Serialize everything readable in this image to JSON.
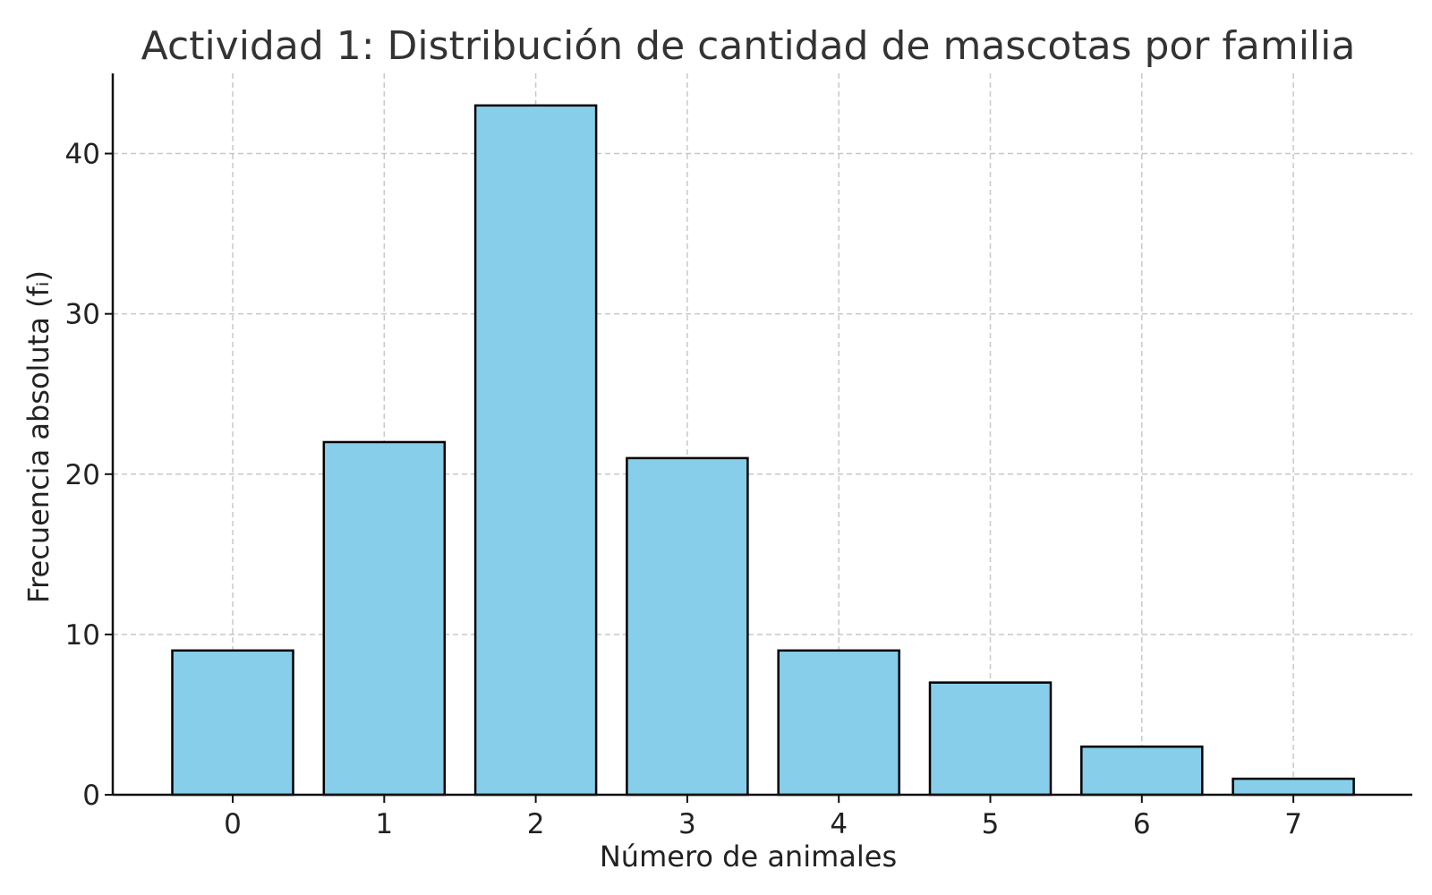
{
  "chart_data": {
    "type": "bar",
    "title": "Actividad 1: Distribución de cantidad de mascotas por familia",
    "xlabel": "Número de animales",
    "ylabel": "Frecuencia absoluta (fᵢ)",
    "categories": [
      "0",
      "1",
      "2",
      "3",
      "4",
      "5",
      "6",
      "7"
    ],
    "values": [
      9,
      22,
      43,
      21,
      9,
      7,
      3,
      1
    ],
    "ylim": [
      0,
      45
    ],
    "yticks": [
      0,
      10,
      20,
      30,
      40
    ],
    "grid": true,
    "bar_color": "#87CEEB",
    "edge_color": "#000000"
  }
}
